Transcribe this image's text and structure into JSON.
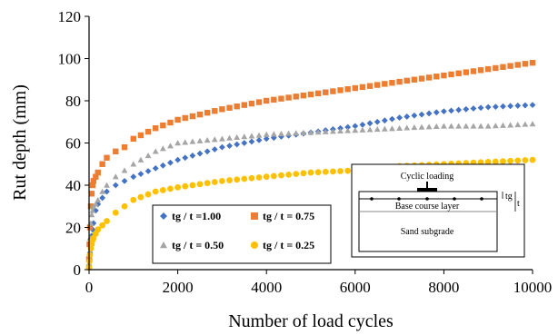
{
  "chart_data": {
    "type": "scatter",
    "title": "",
    "xlabel": "Number of load cycles",
    "ylabel": "Rut depth (mm)",
    "xlim": [
      0,
      10000
    ],
    "ylim": [
      0,
      120
    ],
    "x_ticks": [
      "0",
      "2000",
      "4000",
      "6000",
      "8000",
      "10000"
    ],
    "y_ticks": [
      "0",
      "20",
      "40",
      "60",
      "80",
      "100",
      "120"
    ],
    "grid": false,
    "legend_position": "bottom-center, boxed, two columns",
    "series": [
      {
        "name": "tg / t =1.00",
        "color": "#4472c4",
        "marker": "diamond",
        "points": [
          [
            0,
            2
          ],
          [
            10,
            5
          ],
          [
            20,
            8
          ],
          [
            40,
            12
          ],
          [
            60,
            16
          ],
          [
            80,
            19
          ],
          [
            100,
            22
          ],
          [
            150,
            28
          ],
          [
            200,
            31
          ],
          [
            300,
            34
          ],
          [
            400,
            37
          ],
          [
            600,
            40
          ],
          [
            800,
            42
          ],
          [
            1000,
            44
          ],
          [
            1500,
            48
          ],
          [
            2000,
            52
          ],
          [
            3000,
            58
          ],
          [
            4000,
            62
          ],
          [
            5000,
            65
          ],
          [
            6000,
            68
          ],
          [
            7000,
            72
          ],
          [
            8000,
            75
          ],
          [
            9000,
            77
          ],
          [
            10000,
            78
          ]
        ]
      },
      {
        "name": "tg / t = 0.75",
        "color": "#ed7d31",
        "marker": "square",
        "points": [
          [
            0,
            5
          ],
          [
            10,
            12
          ],
          [
            20,
            20
          ],
          [
            40,
            30
          ],
          [
            60,
            36
          ],
          [
            80,
            40
          ],
          [
            100,
            42
          ],
          [
            150,
            44
          ],
          [
            200,
            46
          ],
          [
            300,
            50
          ],
          [
            400,
            53
          ],
          [
            600,
            56
          ],
          [
            800,
            58
          ],
          [
            1000,
            62
          ],
          [
            1500,
            67
          ],
          [
            2000,
            71
          ],
          [
            3000,
            76
          ],
          [
            4000,
            80
          ],
          [
            5000,
            83
          ],
          [
            6000,
            86
          ],
          [
            7000,
            89
          ],
          [
            8000,
            92
          ],
          [
            9000,
            95
          ],
          [
            10000,
            98
          ]
        ]
      },
      {
        "name": "tg / t = 0.50",
        "color": "#a5a5a5",
        "marker": "triangle",
        "points": [
          [
            0,
            3
          ],
          [
            10,
            8
          ],
          [
            20,
            15
          ],
          [
            40,
            22
          ],
          [
            60,
            26
          ],
          [
            80,
            28
          ],
          [
            100,
            30
          ],
          [
            150,
            31
          ],
          [
            200,
            33
          ],
          [
            300,
            37
          ],
          [
            400,
            40
          ],
          [
            600,
            44
          ],
          [
            800,
            47
          ],
          [
            1000,
            50
          ],
          [
            1500,
            56
          ],
          [
            2000,
            60
          ],
          [
            3000,
            62
          ],
          [
            4000,
            64
          ],
          [
            5000,
            65
          ],
          [
            6000,
            66
          ],
          [
            7000,
            67
          ],
          [
            8000,
            68
          ],
          [
            9000,
            68
          ],
          [
            10000,
            69
          ]
        ]
      },
      {
        "name": "tg / t = 0.25",
        "color": "#ffc000",
        "marker": "circle",
        "points": [
          [
            0,
            1
          ],
          [
            10,
            4
          ],
          [
            20,
            7
          ],
          [
            40,
            10
          ],
          [
            60,
            12
          ],
          [
            80,
            14
          ],
          [
            100,
            15
          ],
          [
            150,
            17
          ],
          [
            200,
            19
          ],
          [
            300,
            21
          ],
          [
            400,
            23
          ],
          [
            600,
            27
          ],
          [
            800,
            30
          ],
          [
            1000,
            33
          ],
          [
            1500,
            37
          ],
          [
            2000,
            39
          ],
          [
            3000,
            42
          ],
          [
            4000,
            44
          ],
          [
            5000,
            46
          ],
          [
            6000,
            47
          ],
          [
            7000,
            49
          ],
          [
            8000,
            50
          ],
          [
            9000,
            51
          ],
          [
            10000,
            52
          ]
        ]
      }
    ],
    "inset": {
      "title": "Cyclic loading",
      "layer_label": "Base course layer",
      "subgrade_label": "Sand subgrade",
      "tg_label": "tg",
      "t_label": "t"
    }
  }
}
